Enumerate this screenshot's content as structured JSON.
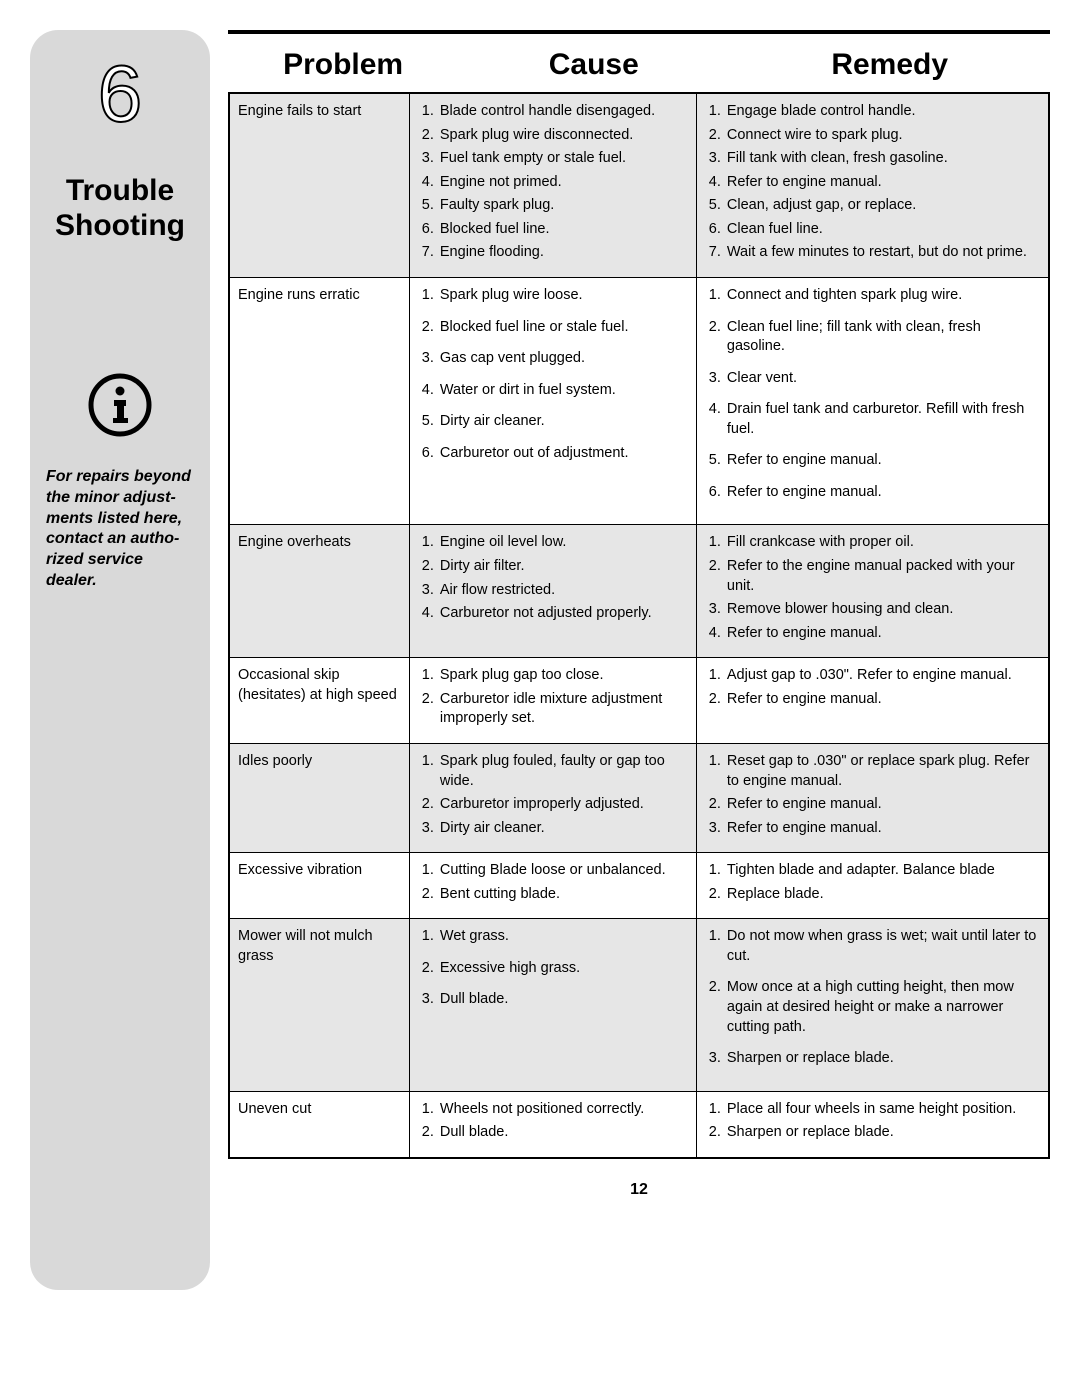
{
  "sidebar": {
    "section_number": "6",
    "title_line1": "Trouble",
    "title_line2": "Shooting",
    "note": "For repairs beyond the minor adjust­ments listed here, contact an autho­rized service dealer."
  },
  "headers": {
    "problem": "Problem",
    "cause": "Cause",
    "remedy": "Remedy"
  },
  "page_number": "12",
  "rows": [
    {
      "problem": "Engine fails to start",
      "causes": [
        "Blade control handle disengaged.",
        "Spark plug wire disconnected.",
        "Fuel tank empty or stale fuel.",
        "Engine not primed.",
        "Faulty spark plug.",
        "Blocked fuel line.",
        "Engine flooding."
      ],
      "remedies": [
        "Engage blade control handle.",
        "Connect wire to spark plug.",
        "Fill tank with clean, fresh gasoline.",
        "Refer to engine manual.",
        "Clean, adjust gap, or replace.",
        "Clean fuel line.",
        "Wait a few minutes to restart, but do not prime."
      ]
    },
    {
      "problem": "Engine runs erratic",
      "causes": [
        "Spark plug wire loose.",
        "Blocked fuel line or stale fuel.",
        "Gas cap vent plugged.",
        "Water or dirt in fuel system.",
        "Dirty air cleaner.",
        "Carburetor out of adjustment."
      ],
      "remedies": [
        "Connect and tighten spark plug wire.",
        "Clean fuel line; fill tank with clean, fresh gasoline.",
        "Clear vent.",
        "Drain fuel tank and carburetor. Refill with fresh fuel.",
        "Refer to engine manual.",
        "Refer to engine manual."
      ]
    },
    {
      "problem": "Engine overheats",
      "causes": [
        "Engine oil level low.",
        "Dirty air filter.",
        "Air flow restricted.",
        "Carburetor not adjusted properly."
      ],
      "remedies": [
        "Fill crankcase with proper oil.",
        "Refer to the engine manual packed with your unit.",
        "Remove blower housing and clean.",
        "Refer to engine manual."
      ]
    },
    {
      "problem": "Occasional skip (hesitates) at high speed",
      "causes": [
        "Spark plug gap too close.",
        "Carburetor idle mixture adjustment improperly set."
      ],
      "remedies": [
        "Adjust gap to .030\". Refer to engine manual.",
        "Refer to engine manual."
      ]
    },
    {
      "problem": "Idles poorly",
      "causes": [
        "Spark plug fouled, faulty or gap too wide.",
        "Carburetor improperly adjusted.",
        "Dirty air cleaner."
      ],
      "remedies": [
        "Reset gap to .030\" or replace spark plug. Refer to engine manual.",
        "Refer to engine manual.",
        "Refer to engine manual."
      ]
    },
    {
      "problem": "Excessive vibration",
      "causes": [
        "Cutting Blade loose or unbalanced.",
        "Bent cutting blade."
      ],
      "remedies": [
        "Tighten blade and adapter. Balance blade",
        "Replace blade."
      ]
    },
    {
      "problem": "Mower will not mulch grass",
      "causes": [
        "Wet grass.",
        "Excessive high grass.",
        "Dull blade."
      ],
      "remedies": [
        "Do not mow when grass is wet; wait until later to cut.",
        "Mow once at a high cutting height, then mow again at desired height or make a narrower cutting path.",
        "Sharpen or replace blade."
      ]
    },
    {
      "problem": "Uneven cut",
      "causes": [
        "Wheels not positioned correctly.",
        "Dull blade."
      ],
      "remedies": [
        "Place all four wheels in same height position.",
        "Sharpen or replace blade."
      ]
    }
  ]
}
